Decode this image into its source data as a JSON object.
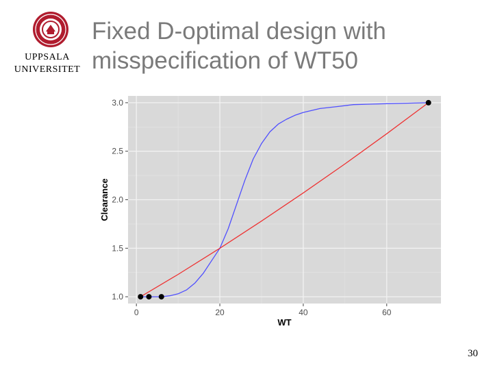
{
  "slide": {
    "title_lines": [
      "Fixed D-optimal design with",
      "misspecification of WT50"
    ],
    "page_number": "30"
  },
  "logo": {
    "line1": "UPPSALA",
    "line2": "UNIVERSITET",
    "color": "#b01c2e"
  },
  "chart_data": {
    "type": "line",
    "title": "",
    "xlabel": "WT",
    "ylabel": "Clearance",
    "xlim": [
      -2,
      73
    ],
    "ylim": [
      0.93,
      3.07
    ],
    "x_ticks": [
      0,
      20,
      40,
      60
    ],
    "y_ticks": [
      1.0,
      1.5,
      2.0,
      2.5,
      3.0
    ],
    "x_tick_labels": [
      "0",
      "20",
      "40",
      "60"
    ],
    "y_tick_labels": [
      "1.0",
      "1.5",
      "2.0",
      "2.5",
      "3.0"
    ],
    "grid": true,
    "background": "#d9d9d9",
    "series": [
      {
        "color": "#4f4fff",
        "x": [
          1,
          4,
          6,
          8,
          10,
          12,
          14,
          16,
          18,
          20,
          22,
          24,
          26,
          28,
          30,
          32,
          34,
          36,
          38,
          40,
          44,
          48,
          52,
          56,
          60,
          65,
          70
        ],
        "y": [
          1.0,
          1.0,
          1.0,
          1.01,
          1.03,
          1.07,
          1.14,
          1.24,
          1.37,
          1.5,
          1.7,
          1.95,
          2.2,
          2.42,
          2.58,
          2.7,
          2.78,
          2.83,
          2.87,
          2.9,
          2.94,
          2.96,
          2.98,
          2.985,
          2.99,
          2.995,
          3.0
        ]
      },
      {
        "color": "#ee3333",
        "x": [
          1,
          10,
          20,
          30,
          40,
          50,
          60,
          70
        ],
        "y": [
          1.0,
          1.23,
          1.5,
          1.78,
          2.07,
          2.37,
          2.68,
          3.0
        ]
      }
    ],
    "points": {
      "color": "#000000",
      "x": [
        1,
        3,
        6,
        70
      ],
      "y": [
        1.0,
        1.0,
        1.0,
        3.0
      ]
    }
  }
}
